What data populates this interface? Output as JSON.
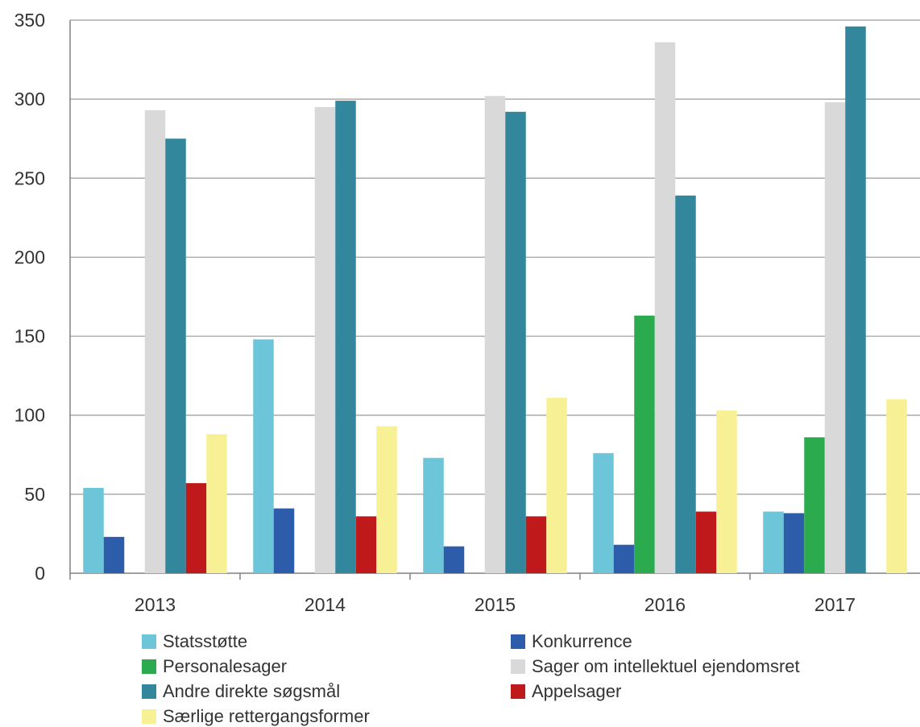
{
  "chart_data": {
    "type": "bar",
    "categories": [
      "2013",
      "2014",
      "2015",
      "2016",
      "2017"
    ],
    "ylim": [
      0,
      350
    ],
    "yticks": [
      0,
      50,
      100,
      150,
      200,
      250,
      300,
      350
    ],
    "grid": true,
    "legend_position": "bottom",
    "series": [
      {
        "name": "Statsstøtte",
        "color": "#6DC5D9",
        "values": [
          54,
          148,
          73,
          76,
          39
        ]
      },
      {
        "name": "Konkurrence",
        "color": "#2C5CAA",
        "values": [
          23,
          41,
          17,
          18,
          38
        ]
      },
      {
        "name": "Personalesager",
        "color": "#2BAA4E",
        "values": [
          0,
          0,
          0,
          163,
          86
        ]
      },
      {
        "name": "Sager om intellektuel ejendomsret",
        "color": "#D9D9D9",
        "values": [
          293,
          295,
          302,
          336,
          298
        ]
      },
      {
        "name": "Andre direkte søgsmål",
        "color": "#32879C",
        "values": [
          275,
          299,
          292,
          239,
          346
        ]
      },
      {
        "name": "Appelsager",
        "color": "#C0191C",
        "values": [
          57,
          36,
          36,
          39,
          0
        ]
      },
      {
        "name": "Særlige rettergangsformer",
        "color": "#F7F094",
        "values": [
          88,
          93,
          111,
          103,
          110
        ]
      }
    ]
  }
}
